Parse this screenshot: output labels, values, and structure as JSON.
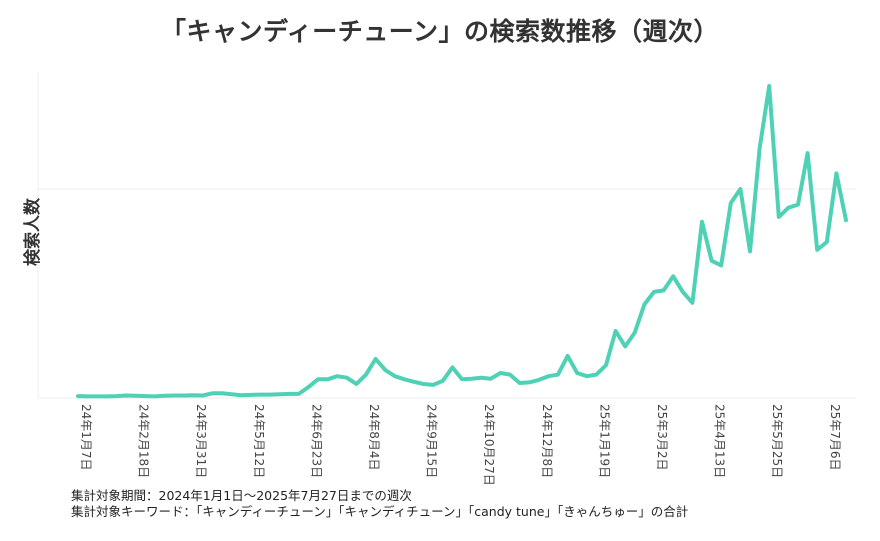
{
  "chart_data": {
    "type": "line",
    "title": "「キャンディーチューン」の検索数推移（週次）",
    "xlabel": "",
    "ylabel": "検索人数",
    "ylim": [
      0,
      100
    ],
    "grid": true,
    "legend": "none",
    "line_color": "#4fd1b5",
    "tick_labels": [
      "24年1月7日",
      "24年2月18日",
      "24年3月31日",
      "24年5月12日",
      "24年6月23日",
      "24年8月4日",
      "24年9月15日",
      "24年10月27日",
      "24年12月8日",
      "25年1月19日",
      "25年3月2日",
      "25年4月13日",
      "25年5月25日",
      "25年7月6日"
    ],
    "tick_indices": [
      0,
      6,
      12,
      18,
      24,
      30,
      36,
      42,
      48,
      54,
      60,
      66,
      72,
      78
    ],
    "values": [
      0.6,
      0.5,
      0.5,
      0.5,
      0.6,
      0.8,
      0.7,
      0.6,
      0.5,
      0.7,
      0.8,
      0.8,
      0.9,
      0.8,
      1.5,
      1.5,
      1.2,
      0.9,
      1.0,
      1.1,
      1.1,
      1.2,
      1.3,
      1.3,
      3.5,
      6.0,
      6.0,
      7.0,
      6.5,
      4.5,
      7.5,
      12.5,
      9.0,
      7.0,
      6.0,
      5.2,
      4.5,
      4.2,
      5.5,
      9.8,
      6.0,
      6.2,
      6.5,
      6.2,
      8.0,
      7.5,
      4.8,
      5.0,
      5.8,
      7.0,
      7.5,
      13.5,
      8.0,
      7.0,
      7.5,
      10.5,
      21.5,
      16.5,
      21.0,
      30.0,
      34.0,
      34.5,
      39.0,
      34.0,
      30.5,
      56.5,
      44.0,
      42.5,
      62.5,
      67.0,
      47.0,
      80.0,
      100.0,
      58.0,
      61.0,
      62.0,
      78.5,
      47.5,
      50.0,
      72.0,
      57.0
    ]
  },
  "footnotes": {
    "period": "集計対象期間：2024年1月1日～2025年7月27日までの週次",
    "keywords": "集計対象キーワード：「キャンディーチューン」「キャンディチューン」「candy tune」「きゃんちゅー」の合計"
  }
}
